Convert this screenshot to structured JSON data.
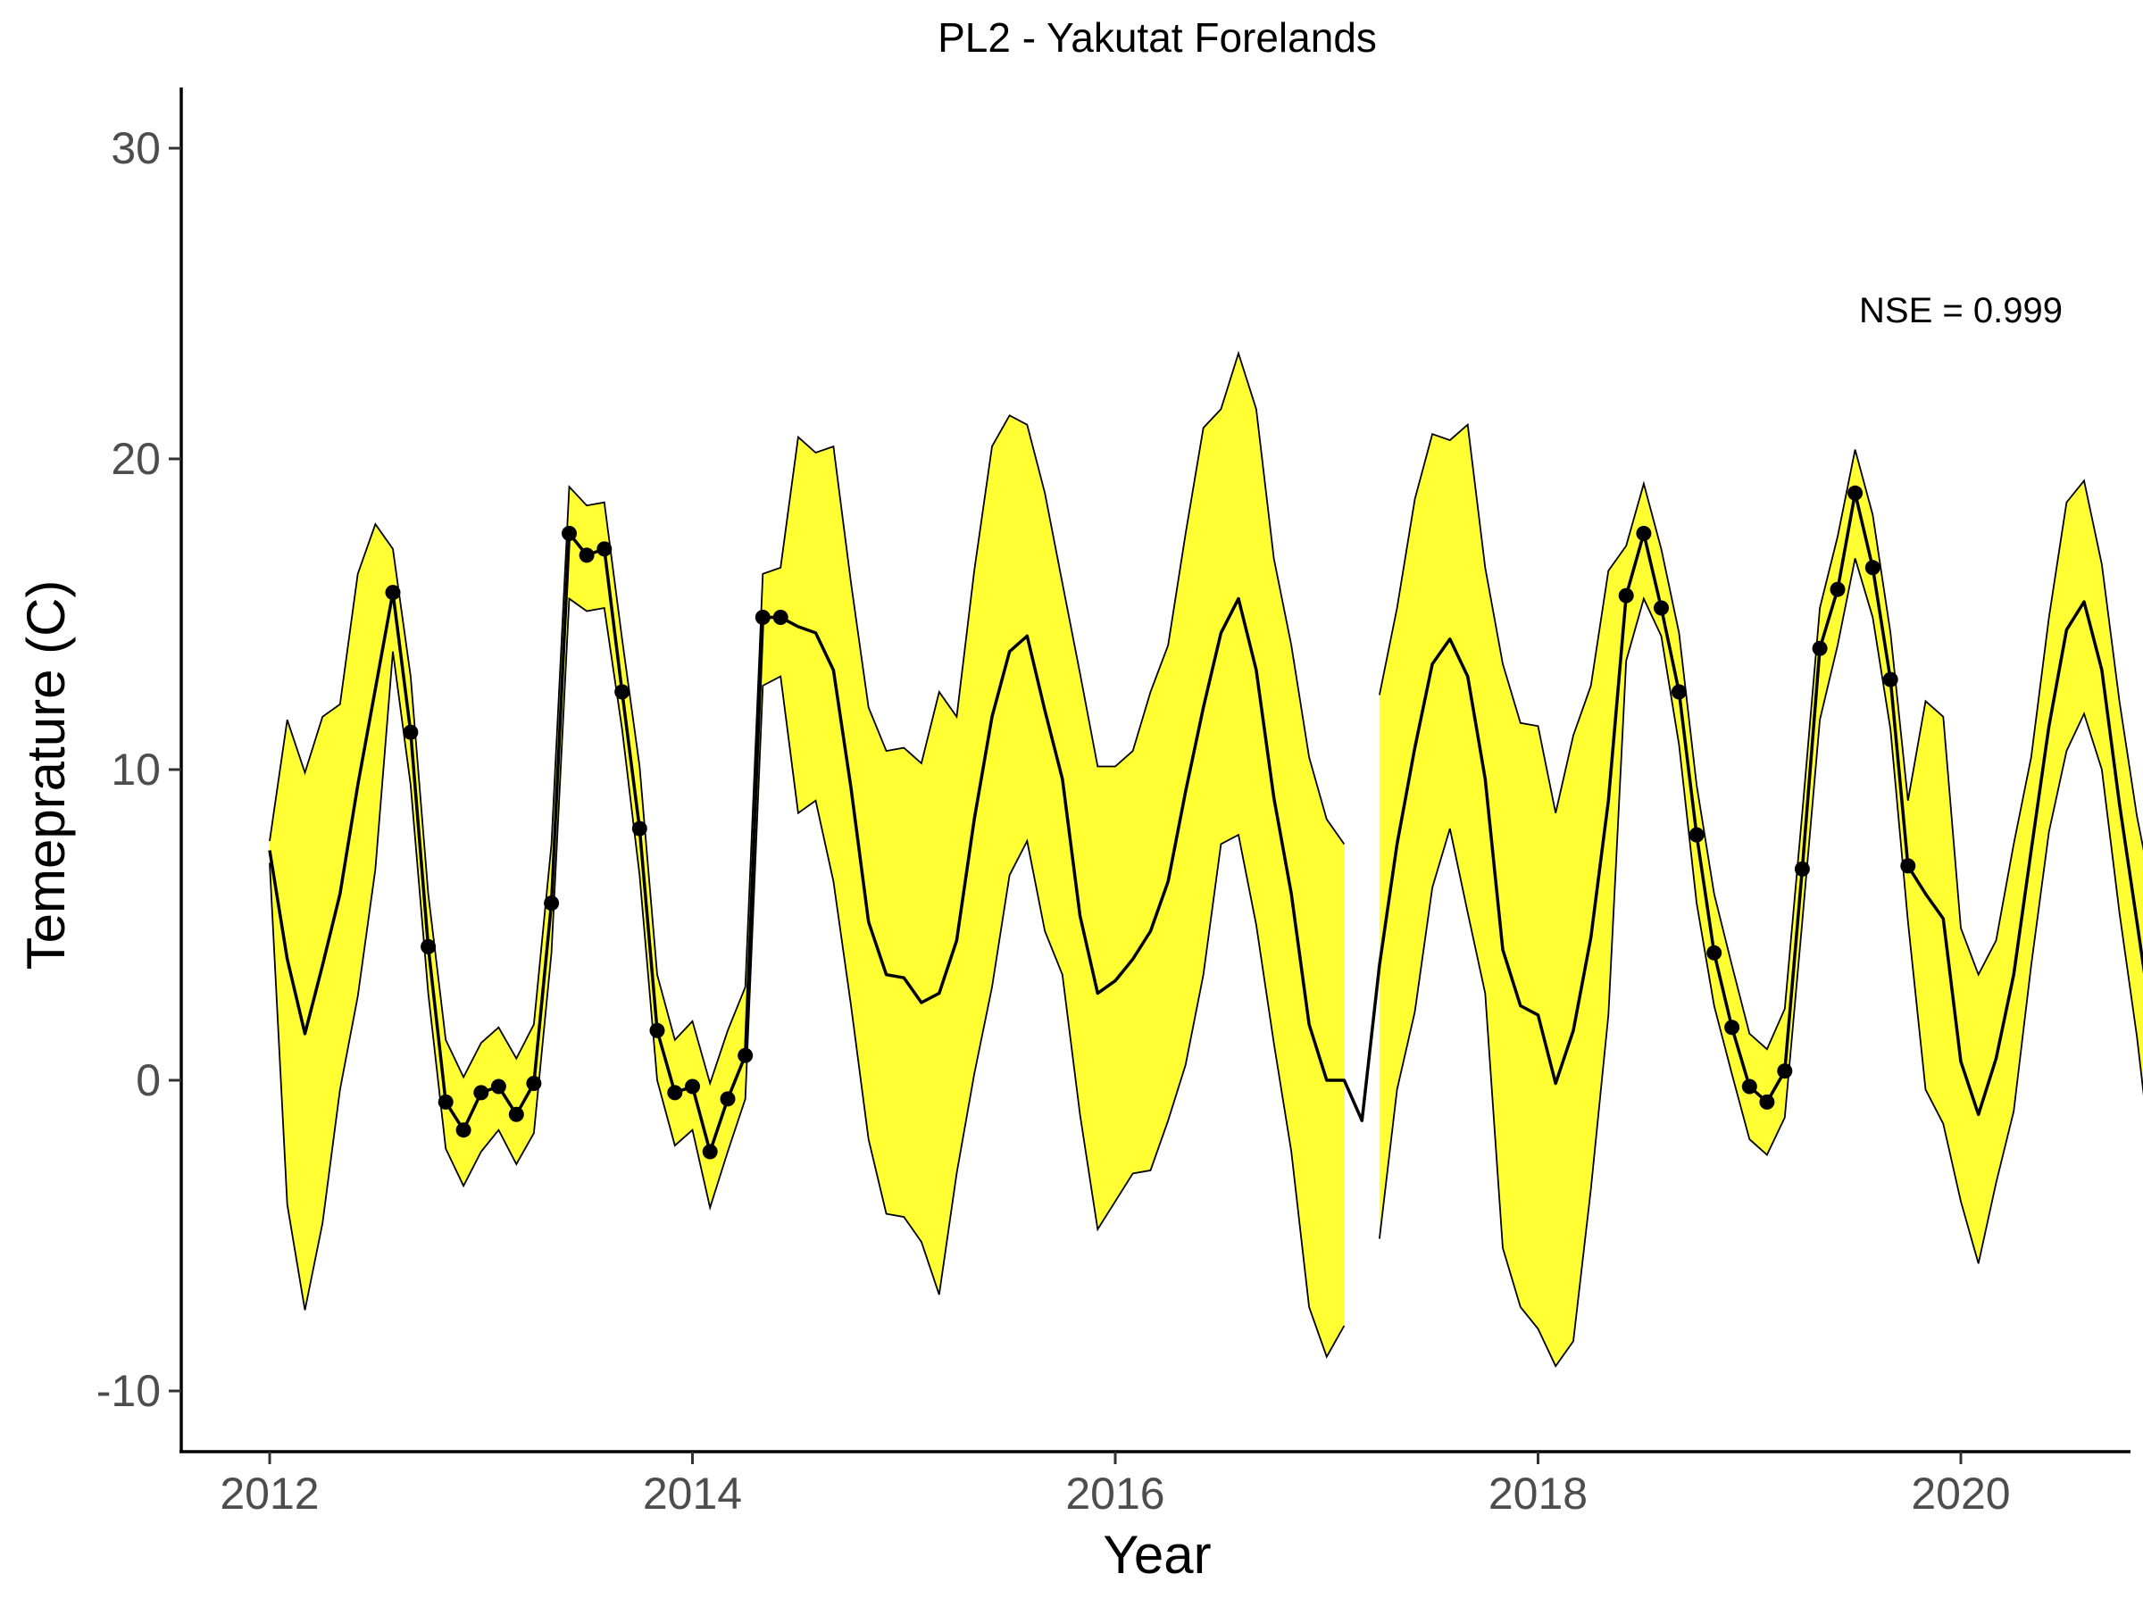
{
  "chart_data": {
    "type": "line",
    "title": "PL2 - Yakutat Forelands",
    "xlabel": "Year",
    "ylabel": "Temeprature (C)",
    "xlim": [
      2011.55,
      2021.3
    ],
    "ylim": [
      -12,
      32
    ],
    "x_ticks": [
      2012,
      2014,
      2016,
      2018,
      2020
    ],
    "x_tick_labels": [
      "2012",
      "2014",
      "2016",
      "2018",
      "2020"
    ],
    "y_ticks": [
      -10,
      0,
      10,
      20,
      30
    ],
    "y_tick_labels": [
      "-10",
      "0",
      "10",
      "20",
      "30"
    ],
    "annotation": {
      "text": "NSE = 0.999",
      "x": 2020.0,
      "y": 24.8
    },
    "grid": false,
    "colors": {
      "band_fill": "#ffff33",
      "band_stroke": "#000000",
      "line": "#000000",
      "points": "#000000"
    },
    "band_segments": [
      {
        "x": [
          2012.0,
          2012.083,
          2012.167,
          2012.25,
          2012.333,
          2012.417,
          2012.5,
          2012.583,
          2012.667,
          2012.75,
          2012.833,
          2012.917,
          2013.0,
          2013.083,
          2013.167,
          2013.25,
          2013.333,
          2013.417,
          2013.5,
          2013.583,
          2013.667,
          2013.75,
          2013.833,
          2013.917,
          2014.0,
          2014.083,
          2014.167,
          2014.25,
          2014.333,
          2014.417,
          2014.5,
          2014.583,
          2014.667,
          2014.75,
          2014.833,
          2014.917,
          2015.0,
          2015.083,
          2015.167,
          2015.25,
          2015.333,
          2015.417,
          2015.5,
          2015.583,
          2015.667,
          2015.75,
          2015.833,
          2015.917,
          2016.0,
          2016.083,
          2016.167,
          2016.25,
          2016.333,
          2016.417,
          2016.5,
          2016.583,
          2016.667,
          2016.75,
          2016.833,
          2016.917,
          2017.0,
          2017.083
        ],
        "upper": [
          7.7,
          11.6,
          9.9,
          11.7,
          12.1,
          16.3,
          17.9,
          17.1,
          13.0,
          6.0,
          1.3,
          0.1,
          1.2,
          1.7,
          0.7,
          1.8,
          7.6,
          19.1,
          18.5,
          18.6,
          14.2,
          10.1,
          3.4,
          1.3,
          1.9,
          -0.1,
          1.6,
          3.0,
          16.3,
          16.5,
          20.7,
          20.2,
          20.4,
          16.0,
          12.0,
          10.6,
          10.7,
          10.2,
          12.5,
          11.7,
          16.4,
          20.4,
          21.4,
          21.1,
          18.9,
          16.0,
          13.1,
          10.1,
          10.1,
          10.6,
          12.5,
          14.0,
          17.6,
          21.0,
          21.6,
          23.4,
          21.6,
          16.8,
          14.0,
          10.4,
          8.4,
          7.6
        ],
        "lower": [
          7.0,
          -4.0,
          -7.4,
          -4.6,
          -0.3,
          2.7,
          6.8,
          13.8,
          9.5,
          2.8,
          -2.2,
          -3.4,
          -2.3,
          -1.6,
          -2.7,
          -1.7,
          4.1,
          15.5,
          15.1,
          15.2,
          11.3,
          6.6,
          0.0,
          -2.1,
          -1.6,
          -4.1,
          -2.3,
          -0.6,
          12.7,
          13.0,
          8.6,
          9.0,
          6.4,
          2.4,
          -1.9,
          -4.3,
          -4.4,
          -5.2,
          -6.9,
          -3.0,
          0.2,
          3.0,
          6.6,
          7.7,
          4.8,
          3.4,
          -1.1,
          -4.8,
          -3.9,
          -3.0,
          -2.9,
          -1.3,
          0.5,
          3.4,
          7.6,
          7.9,
          5.0,
          1.2,
          -2.3,
          -7.3,
          -8.9,
          -7.9
        ]
      },
      {
        "x": [
          2017.25,
          2017.333,
          2017.417,
          2017.5,
          2017.583,
          2017.667,
          2017.75,
          2017.833,
          2017.917,
          2018.0,
          2018.083,
          2018.167,
          2018.25,
          2018.333,
          2018.417,
          2018.5,
          2018.583,
          2018.667,
          2018.75,
          2018.833,
          2018.917,
          2019.0,
          2019.083,
          2019.167,
          2019.25,
          2019.333,
          2019.417,
          2019.5,
          2019.583,
          2019.667,
          2019.75,
          2019.833,
          2019.917,
          2020.0,
          2020.083,
          2020.167,
          2020.25,
          2020.333,
          2020.417,
          2020.5,
          2020.583,
          2020.667,
          2020.75,
          2020.833,
          2020.917
        ],
        "upper": [
          12.4,
          15.2,
          18.7,
          20.8,
          20.6,
          21.1,
          16.5,
          13.4,
          11.5,
          11.4,
          8.6,
          11.1,
          12.7,
          16.4,
          17.2,
          19.2,
          17.1,
          14.4,
          9.5,
          6.0,
          3.7,
          1.5,
          1.0,
          2.3,
          8.6,
          15.2,
          17.5,
          20.3,
          18.2,
          14.4,
          9.0,
          12.2,
          11.7,
          4.9,
          3.4,
          4.5,
          7.6,
          10.4,
          14.9,
          18.6,
          19.3,
          16.6,
          12.2,
          8.5,
          5.6
        ],
        "lower": [
          -5.1,
          -0.3,
          2.2,
          6.2,
          8.1,
          5.4,
          2.8,
          -5.4,
          -7.3,
          -8.0,
          -9.2,
          -8.4,
          -3.5,
          2.1,
          13.5,
          15.5,
          14.3,
          10.8,
          5.7,
          2.4,
          0.2,
          -1.9,
          -2.4,
          -1.2,
          5.1,
          11.6,
          14.0,
          16.8,
          14.9,
          11.3,
          5.1,
          -0.3,
          -1.4,
          -3.9,
          -5.9,
          -3.3,
          -1.0,
          3.7,
          8.0,
          10.6,
          11.8,
          10.0,
          5.4,
          1.4,
          -3.5
        ]
      }
    ],
    "series": [
      {
        "role": "line",
        "x": [
          2012.0,
          2012.083,
          2012.167,
          2012.25,
          2012.333,
          2012.417,
          2012.5,
          2012.583,
          2012.667,
          2012.75,
          2012.833,
          2012.917,
          2013.0,
          2013.083,
          2013.167,
          2013.25,
          2013.333,
          2013.417,
          2013.5,
          2013.583,
          2013.667,
          2013.75,
          2013.833,
          2013.917,
          2014.0,
          2014.083,
          2014.167,
          2014.25,
          2014.333,
          2014.417,
          2014.5,
          2014.583,
          2014.667,
          2014.75,
          2014.833,
          2014.917,
          2015.0,
          2015.083,
          2015.167,
          2015.25,
          2015.333,
          2015.417,
          2015.5,
          2015.583,
          2015.667,
          2015.75,
          2015.833,
          2015.917,
          2016.0,
          2016.083,
          2016.167,
          2016.25,
          2016.333,
          2016.417,
          2016.5,
          2016.583,
          2016.667,
          2016.75,
          2016.833,
          2016.917,
          2017.0,
          2017.083,
          2017.167,
          2017.25,
          2017.333,
          2017.417,
          2017.5,
          2017.583,
          2017.667,
          2017.75,
          2017.833,
          2017.917,
          2018.0,
          2018.083,
          2018.167,
          2018.25,
          2018.333,
          2018.417,
          2018.5,
          2018.583,
          2018.667,
          2018.75,
          2018.833,
          2018.917,
          2019.0,
          2019.083,
          2019.167,
          2019.25,
          2019.333,
          2019.417,
          2019.5,
          2019.583,
          2019.667,
          2019.75,
          2019.833,
          2019.917,
          2020.0,
          2020.083,
          2020.167,
          2020.25,
          2020.333,
          2020.417,
          2020.5,
          2020.583,
          2020.667,
          2020.75,
          2020.833,
          2020.917
        ],
        "y": [
          7.4,
          3.9,
          1.5,
          3.7,
          6.0,
          9.5,
          12.6,
          15.7,
          11.2,
          4.3,
          -0.7,
          -1.6,
          -0.4,
          -0.2,
          -1.1,
          -0.1,
          5.7,
          17.6,
          16.9,
          17.1,
          12.5,
          8.1,
          1.6,
          -0.4,
          -0.2,
          -2.3,
          -0.6,
          0.8,
          14.9,
          14.9,
          14.6,
          14.4,
          13.2,
          9.4,
          5.1,
          3.4,
          3.3,
          2.5,
          2.8,
          4.5,
          8.4,
          11.7,
          13.8,
          14.3,
          11.9,
          9.7,
          5.3,
          2.8,
          3.2,
          3.9,
          4.8,
          6.4,
          9.3,
          12.0,
          14.4,
          15.5,
          13.2,
          9.1,
          6.0,
          1.8,
          0.0,
          0.0,
          -1.3,
          3.7,
          7.6,
          10.7,
          13.4,
          14.2,
          13.0,
          9.7,
          4.2,
          2.4,
          2.1,
          -0.1,
          1.6,
          4.6,
          9.0,
          15.6,
          17.6,
          15.2,
          12.5,
          7.9,
          4.1,
          1.7,
          -0.2,
          -0.7,
          0.3,
          6.8,
          13.9,
          15.8,
          18.9,
          16.5,
          12.9,
          6.9,
          6.0,
          5.2,
          0.6,
          -1.1,
          0.7,
          3.4,
          7.4,
          11.4,
          14.5,
          15.4,
          13.2,
          8.9,
          5.1,
          1.2
        ]
      },
      {
        "role": "points",
        "x": [
          2012.583,
          2012.667,
          2012.75,
          2012.833,
          2012.917,
          2013.0,
          2013.083,
          2013.167,
          2013.25,
          2013.333,
          2013.417,
          2013.5,
          2013.583,
          2013.667,
          2013.75,
          2013.833,
          2013.917,
          2014.0,
          2014.083,
          2014.167,
          2014.25,
          2014.333,
          2014.417,
          2018.417,
          2018.5,
          2018.583,
          2018.667,
          2018.75,
          2018.833,
          2018.917,
          2019.0,
          2019.083,
          2019.167,
          2019.25,
          2019.333,
          2019.417,
          2019.5,
          2019.583,
          2019.667,
          2019.75
        ],
        "y": [
          15.7,
          11.2,
          4.3,
          -0.7,
          -1.6,
          -0.4,
          -0.2,
          -1.1,
          -0.1,
          5.7,
          17.6,
          16.9,
          17.1,
          12.5,
          8.1,
          1.6,
          -0.4,
          -0.2,
          -2.3,
          -0.6,
          0.8,
          14.9,
          14.9,
          15.6,
          17.6,
          15.2,
          12.5,
          7.9,
          4.1,
          1.7,
          -0.2,
          -0.7,
          0.3,
          6.8,
          13.9,
          15.8,
          18.9,
          16.5,
          12.9,
          6.9
        ]
      }
    ]
  }
}
